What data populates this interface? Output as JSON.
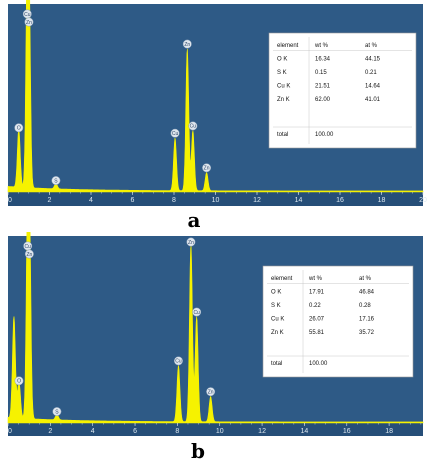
{
  "colors": {
    "background": "#2e5a86",
    "spectrum": "#f6f200",
    "axis_text": "#dde8f0",
    "table_bg": "#ffffff"
  },
  "chart_data": [
    {
      "type": "area",
      "panel_label": "a",
      "x_ticks": [
        "0",
        "2",
        "4",
        "6",
        "8",
        "10",
        "12",
        "14",
        "16",
        "18",
        "20"
      ],
      "xlim": [
        0,
        20
      ],
      "peaks": [
        {
          "label": "O",
          "x": 0.52,
          "rel_height": 0.32
        },
        {
          "label": "Cu",
          "x": 0.93,
          "rel_height": 1.05
        },
        {
          "label": "Zn",
          "x": 1.01,
          "rel_height": 0.98
        },
        {
          "label": "S",
          "x": 2.31,
          "rel_height": 0.03
        },
        {
          "label": "Cu",
          "x": 8.05,
          "rel_height": 0.29
        },
        {
          "label": "Zn",
          "x": 8.64,
          "rel_height": 0.78
        },
        {
          "label": "Cu",
          "x": 8.91,
          "rel_height": 0.33
        },
        {
          "label": "Zn",
          "x": 9.57,
          "rel_height": 0.1
        }
      ],
      "table": {
        "headers": [
          "element",
          "wt %",
          "at %"
        ],
        "rows": [
          [
            "O K",
            "16.34",
            "44.15"
          ],
          [
            "S K",
            "0.15",
            "0.21"
          ],
          [
            "Cu K",
            "21.51",
            "14.64"
          ],
          [
            "Zn K",
            "62.00",
            "41.01"
          ]
        ],
        "total": [
          "total",
          "100.00",
          ""
        ]
      }
    },
    {
      "type": "area",
      "panel_label": "b",
      "x_ticks": [
        "0",
        "2",
        "4",
        "6",
        "8",
        "10",
        "12",
        "14",
        "16",
        "18"
      ],
      "xlim": [
        0,
        19.6
      ],
      "peaks": [
        {
          "label": "C",
          "x": 0.28,
          "rel_height": 0.56
        },
        {
          "label": "O",
          "x": 0.52,
          "rel_height": 0.2
        },
        {
          "label": "Cu",
          "x": 0.93,
          "rel_height": 1.0
        },
        {
          "label": "Zn",
          "x": 1.01,
          "rel_height": 0.95
        },
        {
          "label": "S",
          "x": 2.31,
          "rel_height": 0.03
        },
        {
          "label": "Cu",
          "x": 8.05,
          "rel_height": 0.31
        },
        {
          "label": "Zn",
          "x": 8.64,
          "rel_height": 0.98
        },
        {
          "label": "Cu",
          "x": 8.91,
          "rel_height": 0.58
        },
        {
          "label": "Zn",
          "x": 9.57,
          "rel_height": 0.14
        }
      ],
      "table": {
        "headers": [
          "element",
          "wt %",
          "at %"
        ],
        "rows": [
          [
            "O K",
            "17.91",
            "46.84"
          ],
          [
            "S K",
            "0.22",
            "0.28"
          ],
          [
            "Cu K",
            "26.07",
            "17.16"
          ],
          [
            "Zn K",
            "55.81",
            "35.72"
          ]
        ],
        "total": [
          "total",
          "100.00",
          ""
        ]
      }
    }
  ]
}
